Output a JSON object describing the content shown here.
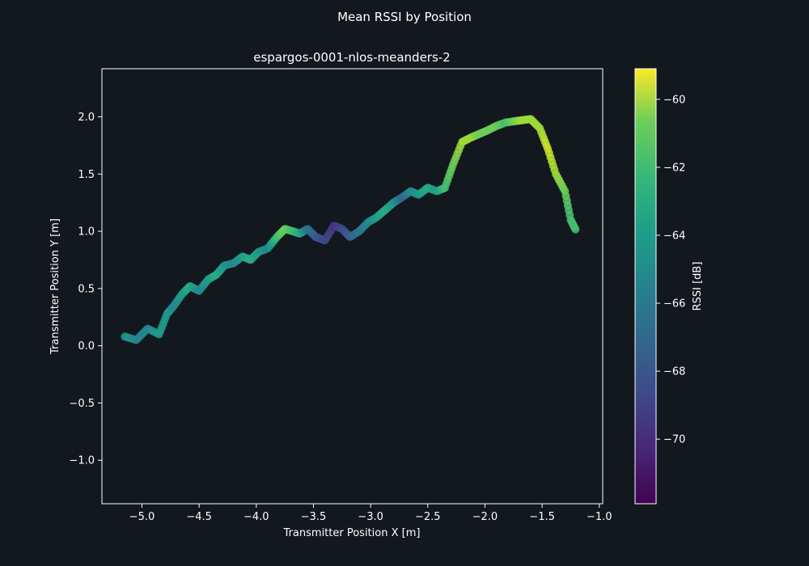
{
  "figure": {
    "suptitle": "Mean RSSI by Position",
    "background": "#12181e",
    "foreground": "#ffffff"
  },
  "chart_data": {
    "type": "scatter",
    "title": "espargos-0001-nlos-meanders-2",
    "xlabel": "Transmitter Position X [m]",
    "ylabel": "Transmitter Position Y [m]",
    "xlim": [
      -5.35,
      -0.97
    ],
    "ylim": [
      -1.38,
      2.42
    ],
    "xticks": [
      -5.0,
      -4.5,
      -4.0,
      -3.5,
      -3.0,
      -2.5,
      -2.0,
      -1.5,
      -1.0
    ],
    "xtick_labels": [
      "−5.0",
      "−4.5",
      "−4.0",
      "−3.5",
      "−3.0",
      "−2.5",
      "−2.0",
      "−1.5",
      "−1.0"
    ],
    "yticks": [
      -1.0,
      -0.5,
      0.0,
      0.5,
      1.0,
      1.5,
      2.0
    ],
    "ytick_labels": [
      "−1.0",
      "−0.5",
      "0.0",
      "0.5",
      "1.0",
      "1.5",
      "2.0"
    ],
    "grid": false,
    "colormap": "viridis",
    "colorbar": {
      "label": "RSSI [dB]",
      "vmin": -71.9,
      "vmax": -59.1,
      "ticks": [
        -70,
        -68,
        -66,
        -64,
        -62,
        -60
      ],
      "tick_labels": [
        "−70",
        "−68",
        "−66",
        "−64",
        "−62",
        "−60"
      ]
    },
    "series": [
      {
        "name": "trajectory",
        "description": "meandering transmitter trajectory colored by mean RSSI",
        "x": [
          -5.15,
          -5.05,
          -4.95,
          -4.85,
          -4.78,
          -4.72,
          -4.65,
          -4.58,
          -4.5,
          -4.42,
          -4.35,
          -4.28,
          -4.2,
          -4.12,
          -4.05,
          -3.98,
          -3.9,
          -3.82,
          -3.75,
          -3.68,
          -3.62,
          -3.55,
          -3.48,
          -3.4,
          -3.32,
          -3.25,
          -3.18,
          -3.1,
          -3.02,
          -2.95,
          -2.88,
          -2.8,
          -2.72,
          -2.65,
          -2.58,
          -2.5,
          -2.42,
          -2.35,
          -2.28,
          -2.2,
          -2.12,
          -2.05,
          -1.98,
          -1.9,
          -1.82,
          -1.75,
          -1.68,
          -1.6,
          -1.52,
          -1.45,
          -1.38,
          -1.3,
          -1.25,
          -1.2
        ],
        "y": [
          0.08,
          0.05,
          0.15,
          0.1,
          0.28,
          0.35,
          0.45,
          0.52,
          0.48,
          0.58,
          0.62,
          0.7,
          0.72,
          0.78,
          0.75,
          0.82,
          0.85,
          0.95,
          1.02,
          1.0,
          0.98,
          1.02,
          0.95,
          0.92,
          1.05,
          1.02,
          0.95,
          1.0,
          1.08,
          1.12,
          1.18,
          1.25,
          1.3,
          1.35,
          1.32,
          1.38,
          1.35,
          1.38,
          1.58,
          1.78,
          1.82,
          1.85,
          1.88,
          1.92,
          1.95,
          1.96,
          1.97,
          1.98,
          1.9,
          1.72,
          1.5,
          1.35,
          1.1,
          1.0
        ],
        "rssi": [
          -65,
          -66,
          -66,
          -65,
          -65,
          -66,
          -65,
          -64,
          -66,
          -65,
          -64,
          -65,
          -66,
          -65,
          -64,
          -65,
          -66,
          -63,
          -62,
          -63,
          -64,
          -67,
          -68,
          -69,
          -70,
          -69,
          -68,
          -67,
          -66,
          -65,
          -64,
          -65,
          -68,
          -66,
          -65,
          -64,
          -65,
          -63,
          -62,
          -61,
          -61,
          -62,
          -62,
          -62,
          -63,
          -62,
          -61,
          -61,
          -61,
          -60,
          -61,
          -62,
          -63,
          -63
        ]
      }
    ],
    "value_range": {
      "x": [
        -5.2,
        -1.15
      ],
      "y": [
        -0.92,
        1.98
      ],
      "rssi": [
        -71.5,
        -59.5
      ]
    }
  }
}
